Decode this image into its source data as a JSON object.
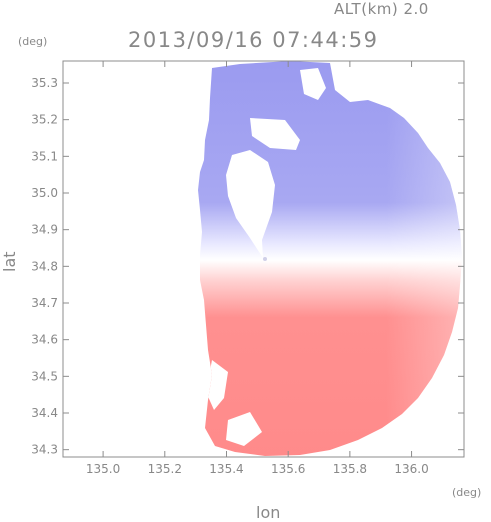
{
  "header": {
    "altitude": "ALT(km) 2.0",
    "timestamp": "2013/09/16 07:44:59"
  },
  "chart_data": {
    "type": "heatmap",
    "title": "2013/09/16 07:44:59",
    "subtitle": "ALT(km) 2.0",
    "xlabel": "lon",
    "ylabel": "lat",
    "xunit": "(deg)",
    "yunit": "(deg)",
    "xlim": [
      134.87,
      136.17
    ],
    "ylim": [
      34.28,
      35.36
    ],
    "xticks": [
      "135.0",
      "135.2",
      "135.4",
      "135.6",
      "135.8",
      "136.0"
    ],
    "yticks": [
      "35.3",
      "35.2",
      "35.1",
      "35.0",
      "34.9",
      "34.8",
      "34.7",
      "34.6",
      "34.5",
      "34.4",
      "34.3"
    ],
    "radar_center": {
      "lon": 135.52,
      "lat": 34.82
    },
    "colors": {
      "away": "#ff8080",
      "toward": "#8080ee",
      "zero": "#ffffff",
      "axis": "#888888"
    }
  }
}
